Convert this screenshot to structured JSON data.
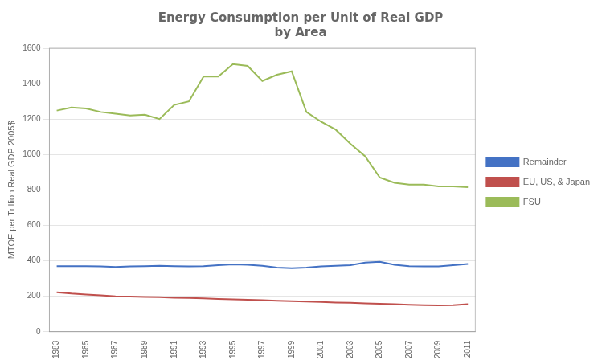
{
  "chart_data": {
    "type": "line",
    "title": "Energy Consumption per Unit of Real GDP\nby Area",
    "y_label": "MTOE per Trillion Real GDP 2005$",
    "x": [
      1983,
      1984,
      1985,
      1986,
      1987,
      1988,
      1989,
      1990,
      1991,
      1992,
      1993,
      1994,
      1995,
      1996,
      1997,
      1998,
      1999,
      2000,
      2001,
      2002,
      2003,
      2004,
      2005,
      2006,
      2007,
      2008,
      2009,
      2010,
      2011
    ],
    "series": [
      {
        "name": "Remainder",
        "color": "#4472c4",
        "values": [
          370,
          370,
          370,
          368,
          365,
          368,
          370,
          372,
          370,
          368,
          370,
          375,
          380,
          378,
          372,
          362,
          358,
          362,
          368,
          372,
          375,
          390,
          395,
          378,
          370,
          368,
          368,
          375,
          382
        ]
      },
      {
        "name": "EU, US, & Japan",
        "color": "#c0504d",
        "values": [
          222,
          215,
          210,
          205,
          200,
          198,
          196,
          195,
          192,
          190,
          188,
          185,
          183,
          180,
          178,
          175,
          172,
          170,
          168,
          165,
          163,
          160,
          158,
          155,
          152,
          150,
          148,
          150,
          155
        ]
      },
      {
        "name": "FSU",
        "color": "#9bbb59",
        "values": [
          1248,
          1265,
          1260,
          1240,
          1230,
          1220,
          1225,
          1200,
          1280,
          1300,
          1440,
          1440,
          1510,
          1500,
          1415,
          1450,
          1470,
          1240,
          1185,
          1140,
          1060,
          990,
          870,
          840,
          830,
          830,
          820,
          820,
          815
        ]
      }
    ],
    "xlim": [
      1982.5,
      2011.5
    ],
    "xticks": [
      1983,
      1985,
      1987,
      1989,
      1991,
      1993,
      1995,
      1997,
      1999,
      2001,
      2003,
      2005,
      2007,
      2009,
      2011
    ],
    "ylim": [
      0,
      1600
    ],
    "yticks": [
      0,
      200,
      400,
      600,
      800,
      1000,
      1200,
      1400,
      1600
    ],
    "grid": "y",
    "legend": "right"
  }
}
